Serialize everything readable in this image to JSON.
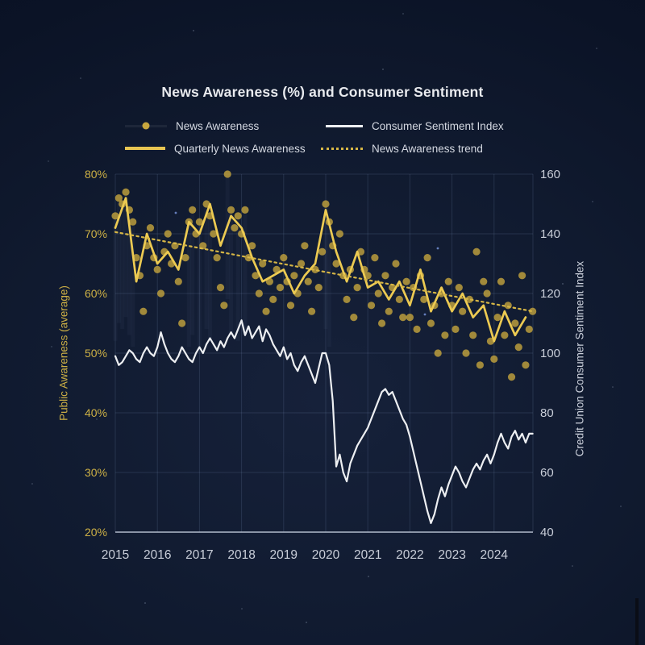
{
  "title": "News Awareness (%) and Consumer Sentiment",
  "legend": {
    "news_awareness": "News Awareness",
    "sentiment": "Consumer Sentiment Index",
    "quarterly": "Quarterly News Awareness",
    "trend": "News Awareness trend"
  },
  "colors": {
    "background": "#0f1930",
    "gold_line": "#ecca52",
    "gold_dot": "#c5a53d",
    "gold_text": "#cdb045",
    "trend": "#d6b645",
    "white_line": "#edeff2",
    "axis_text": "#c9ced9",
    "grid": "rgba(145,165,205,0.17)"
  },
  "chart_data": {
    "type": "line",
    "title": "News Awareness (%) and Consumer Sentiment",
    "xlabel": "",
    "x_ticks": [
      2015,
      2016,
      2017,
      2018,
      2019,
      2020,
      2021,
      2022,
      2023,
      2024
    ],
    "x_range": [
      2015.0,
      2024.92
    ],
    "left_axis": {
      "label": "Public Awareness (average)",
      "ticks": [
        20,
        30,
        40,
        50,
        60,
        70,
        80
      ],
      "tick_suffix": "%",
      "range": [
        20,
        80
      ]
    },
    "right_axis": {
      "label": "Credit Union Consumer Sentiment Index",
      "ticks": [
        40,
        60,
        80,
        100,
        120,
        140,
        160
      ],
      "range": [
        40,
        160
      ]
    },
    "legend_position": "top",
    "grid": true,
    "series": [
      {
        "name": "News Awareness",
        "style": "scatter",
        "axis": "left",
        "x_start": 2015.0,
        "x_step": 0.083333,
        "values": [
          73,
          76,
          75,
          77,
          74,
          72,
          66,
          63,
          57,
          68,
          71,
          66,
          64,
          60,
          67,
          70,
          65,
          68,
          62,
          55,
          66,
          72,
          74,
          70,
          72,
          68,
          75,
          73,
          70,
          66,
          61,
          58,
          80,
          74,
          71,
          73,
          70,
          74,
          66,
          68,
          63,
          60,
          65,
          57,
          62,
          59,
          64,
          61,
          66,
          62,
          58,
          63,
          60,
          65,
          68,
          62,
          57,
          64,
          61,
          67,
          75,
          72,
          68,
          65,
          70,
          63,
          59,
          64,
          56,
          61,
          67,
          64,
          63,
          58,
          66,
          60,
          55,
          63,
          57,
          61,
          65,
          59,
          56,
          62,
          56,
          61,
          54,
          63,
          59,
          66,
          55,
          58,
          50,
          60,
          53,
          62,
          58,
          54,
          61,
          57,
          50,
          59,
          53,
          67,
          48,
          62,
          60,
          52,
          49,
          56,
          62,
          53,
          58,
          46,
          55,
          51,
          63,
          48,
          54,
          57
        ]
      },
      {
        "name": "Quarterly News Awareness",
        "style": "line",
        "axis": "left",
        "x_start": 2015.0,
        "x_step": 0.25,
        "values": [
          71,
          76,
          62,
          70,
          65,
          67,
          64,
          72,
          70,
          75,
          68,
          73,
          71,
          66,
          62,
          63,
          64,
          60,
          63,
          65,
          74,
          67,
          62,
          67,
          61,
          62,
          59,
          62,
          58,
          64,
          57,
          61,
          57,
          60,
          56,
          58,
          52,
          57,
          53,
          56
        ]
      },
      {
        "name": "News Awareness trend",
        "style": "dotted",
        "axis": "left",
        "x": [
          2015.0,
          2024.92
        ],
        "values": [
          70.3,
          57.0
        ]
      },
      {
        "name": "Consumer Sentiment Index",
        "style": "line",
        "axis": "right",
        "x_start": 2015.0,
        "x_step": 0.083333,
        "values": [
          99,
          96,
          97,
          99,
          101,
          100,
          98,
          97,
          100,
          102,
          100,
          99,
          102,
          107,
          103,
          100,
          98,
          97,
          99,
          102,
          100,
          98,
          97,
          100,
          102,
          100,
          103,
          105,
          103,
          101,
          104,
          102,
          105,
          107,
          105,
          108,
          111,
          106,
          109,
          105,
          107,
          109,
          104,
          108,
          106,
          103,
          101,
          99,
          102,
          98,
          100,
          96,
          94,
          97,
          99,
          96,
          93,
          90,
          95,
          100,
          100,
          96,
          84,
          62,
          66,
          60,
          57,
          63,
          66,
          69,
          71,
          73,
          75,
          78,
          81,
          84,
          87,
          88,
          86,
          87,
          84,
          81,
          78,
          76,
          72,
          67,
          62,
          57,
          52,
          47,
          43,
          46,
          51,
          55,
          52,
          56,
          59,
          62,
          60,
          57,
          55,
          58,
          61,
          63,
          61,
          64,
          66,
          63,
          66,
          70,
          73,
          70,
          68,
          72,
          74,
          71,
          73,
          70,
          73,
          73
        ]
      }
    ]
  }
}
